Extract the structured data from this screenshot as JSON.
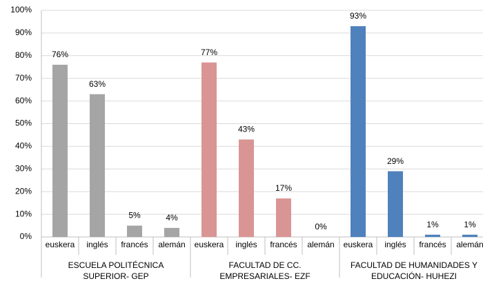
{
  "chart_data": {
    "type": "bar",
    "ylim": [
      0,
      100
    ],
    "yticks": [
      {
        "value": 0,
        "label": "0%"
      },
      {
        "value": 10,
        "label": "10%"
      },
      {
        "value": 20,
        "label": "20%"
      },
      {
        "value": 30,
        "label": "30%"
      },
      {
        "value": 40,
        "label": "40%"
      },
      {
        "value": 50,
        "label": "50%"
      },
      {
        "value": 60,
        "label": "60%"
      },
      {
        "value": 70,
        "label": "70%"
      },
      {
        "value": 80,
        "label": "80%"
      },
      {
        "value": 90,
        "label": "90%"
      },
      {
        "value": 100,
        "label": "100%"
      }
    ],
    "grid": true,
    "series": [
      {
        "label_lines": [
          "ESCUELA POLITÉCNICA",
          "SUPERIOR- GEP"
        ],
        "color": "#a5a5a5",
        "categories": [
          "euskera",
          "inglés",
          "francés",
          "alemán"
        ],
        "values": [
          76,
          63,
          5,
          4
        ],
        "value_labels": [
          "76%",
          "63%",
          "5%",
          "4%"
        ]
      },
      {
        "label_lines": [
          "FACULTAD DE CC.",
          "EMPRESARIALES- EZF"
        ],
        "color": "#d99594",
        "categories": [
          "euskera",
          "inglés",
          "francés",
          "alemán"
        ],
        "values": [
          77,
          43,
          17,
          0
        ],
        "value_labels": [
          "77%",
          "43%",
          "17%",
          "0%"
        ]
      },
      {
        "label_lines": [
          "FACULTAD DE HUMANIDADES Y",
          "EDUCACIÓN- HUHEZI"
        ],
        "color": "#4f81bd",
        "categories": [
          "euskera",
          "inglés",
          "francés",
          "alemán"
        ],
        "values": [
          93,
          29,
          1,
          1
        ],
        "value_labels": [
          "93%",
          "29%",
          "1%",
          "1%"
        ]
      }
    ]
  }
}
